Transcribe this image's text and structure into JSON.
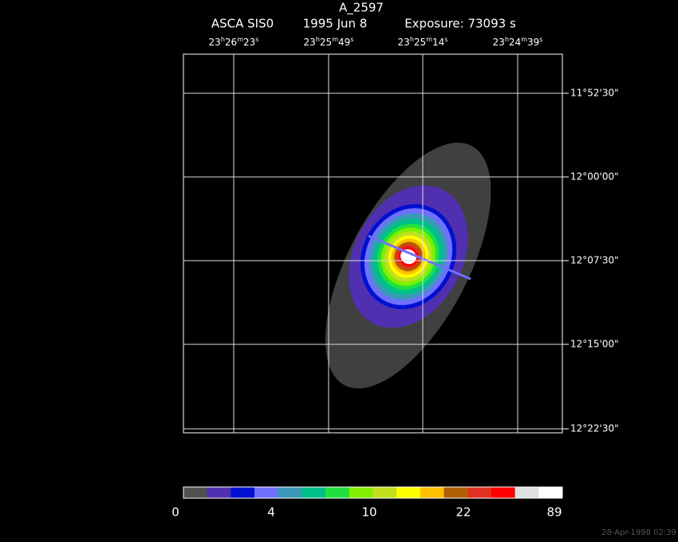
{
  "title": "A_2597",
  "subtitle": {
    "instrument": "ASCA SIS0",
    "date": "1995 Jun  8",
    "exposure": "Exposure: 73093 s"
  },
  "ra_labels": [
    [
      "23",
      "h",
      "26",
      "m",
      "23",
      "s"
    ],
    [
      "23",
      "h",
      "25",
      "m",
      "49",
      "s"
    ],
    [
      "23",
      "h",
      "25",
      "m",
      "14",
      "s"
    ],
    [
      "23",
      "h",
      "24",
      "m",
      "39",
      "s"
    ]
  ],
  "dec_labels": [
    "11°52'30\"",
    "12°00'00\"",
    "12°07'30\"",
    "12°15'00\"",
    "12°22'30\""
  ],
  "colorbar": {
    "colors": [
      "#505050",
      "#5030b0",
      "#0010d0",
      "#7070ff",
      "#3a9ab8",
      "#00c08a",
      "#20e040",
      "#80f000",
      "#c0e020",
      "#ffff00",
      "#ffc000",
      "#b06000",
      "#e03020",
      "#ff0000",
      "#e0e0e0",
      "#ffffff"
    ],
    "labels": [
      "0",
      "4",
      "10",
      "22",
      "89"
    ]
  },
  "footer": "28-Apr-1998 02:39"
}
